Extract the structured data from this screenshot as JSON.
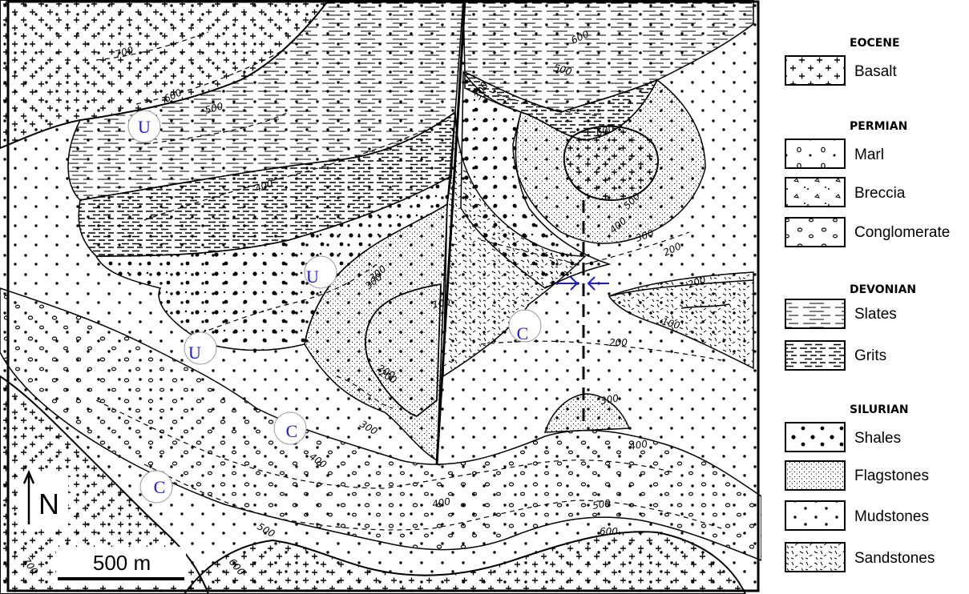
{
  "legend": {
    "groups": [
      {
        "era": "EOCENE",
        "units": [
          {
            "name": "Basalt",
            "pattern": "plus"
          }
        ]
      },
      {
        "era": "PERMIAN",
        "units": [
          {
            "name": "Marl",
            "pattern": "marl"
          },
          {
            "name": "Breccia",
            "pattern": "breccia"
          },
          {
            "name": "Conglomerate",
            "pattern": "conglomerate"
          }
        ]
      },
      {
        "era": "DEVONIAN",
        "units": [
          {
            "name": "Slates",
            "pattern": "slates"
          },
          {
            "name": "Grits",
            "pattern": "grits"
          }
        ]
      },
      {
        "era": "SILURIAN",
        "units": [
          {
            "name": "Shales",
            "pattern": "shales"
          },
          {
            "name": "Flagstones",
            "pattern": "flag"
          },
          {
            "name": "Mudstones",
            "pattern": "mud"
          },
          {
            "name": "Sandstones",
            "pattern": "sand"
          }
        ]
      }
    ]
  },
  "map": {
    "contour_labels": [
      "700",
      "600",
      "500",
      "400",
      "300",
      "200",
      "100",
      "100",
      "200",
      "300",
      "400",
      "500",
      "600",
      "300",
      "200",
      "300",
      "600",
      "500",
      "400",
      "300",
      "200",
      "400",
      "500",
      "600",
      "700",
      "600",
      "500",
      "400",
      "300",
      "200"
    ],
    "markers": [
      "U",
      "U",
      "U",
      "C",
      "C",
      "C"
    ],
    "north_label": "N",
    "scale_label": "500 m"
  },
  "colors": {
    "ink": "#000000",
    "marker": "#1a1ad8"
  }
}
